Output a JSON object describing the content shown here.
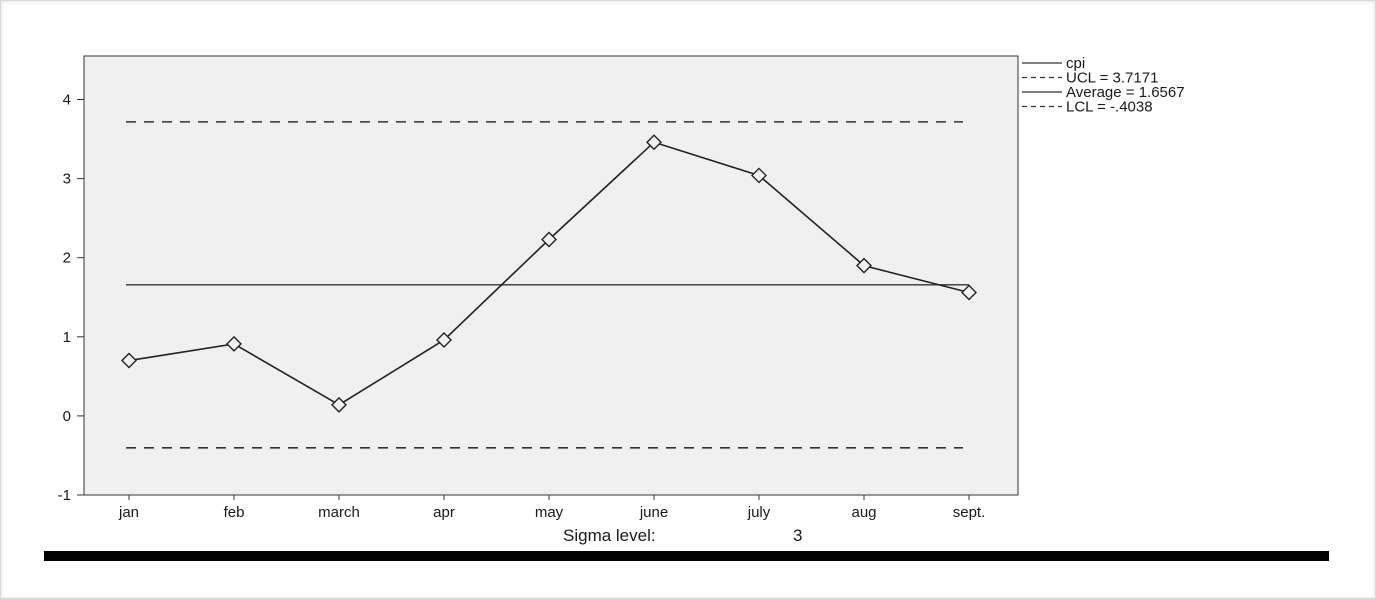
{
  "chart_data": {
    "type": "line",
    "categories": [
      "jan",
      "feb",
      "march",
      "apr",
      "may",
      "june",
      "july",
      "aug",
      "sept."
    ],
    "series": [
      {
        "name": "cpi",
        "values": [
          0.7,
          0.91,
          0.14,
          0.96,
          2.23,
          3.46,
          3.04,
          1.9,
          1.56
        ],
        "marker": "diamond",
        "color": "#222222"
      }
    ],
    "control_limits": {
      "ucl": 3.7171,
      "average": 1.6567,
      "lcl": -0.4038
    },
    "legend": [
      {
        "key": "cpi",
        "label": "cpi",
        "style": "solid"
      },
      {
        "key": "ucl",
        "label": "UCL = 3.7171",
        "style": "dashed"
      },
      {
        "key": "average",
        "label": "Average = 1.6567",
        "style": "solid"
      },
      {
        "key": "lcl",
        "label": "LCL = -.4038",
        "style": "dashed"
      }
    ],
    "legend_position": "top-right, outside plot area",
    "y_ticks": [
      "-1",
      "0",
      "1",
      "2",
      "3",
      "4"
    ],
    "ylim": [
      -1,
      4.55
    ],
    "title": "",
    "xlabel": "",
    "ylabel": "",
    "grid": false,
    "plot_background": "#f0f0f0",
    "footer": {
      "sigma_label": "Sigma level:",
      "sigma_value": "3"
    }
  }
}
